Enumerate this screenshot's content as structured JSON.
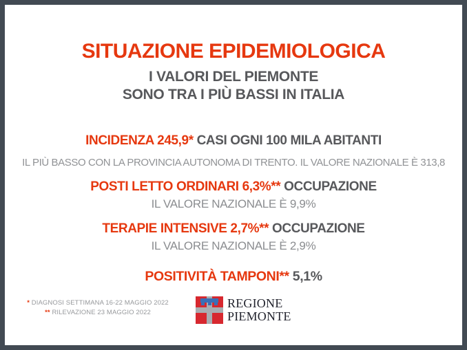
{
  "colors": {
    "accent_red": "#E6380F",
    "text_dark_gray": "#57585B",
    "text_light_gray": "#909295",
    "frame_slate": "#424A53",
    "logo_red": "#D7282F",
    "logo_cross_silver": "#A9ADB1",
    "logo_label_blue": "#3A6FB7"
  },
  "title": "SITUAZIONE EPIDEMIOLOGICA",
  "subtitle": {
    "line1": "I VALORI DEL PIEMONTE",
    "line2": "SONO TRA I PIÙ BASSI IN ITALIA"
  },
  "stats": [
    {
      "highlight": "INCIDENZA 245,9*",
      "rest": "CASI OGNI 100 MILA ABITANTI",
      "note": "IL PIÙ BASSO CON LA PROVINCIA AUTONOMA DI TRENTO. IL VALORE NAZIONALE È 313,8"
    },
    {
      "highlight": "POSTI LETTO ORDINARI 6,3%**",
      "rest": "OCCUPAZIONE",
      "note": "IL VALORE NAZIONALE È 9,9%"
    },
    {
      "highlight": "TERAPIE INTENSIVE 2,7%**",
      "rest": "OCCUPAZIONE",
      "note": "IL VALORE NAZIONALE È 2,9%"
    },
    {
      "highlight": "POSITIVITÀ TAMPONI**",
      "rest": "5,1%",
      "note": ""
    }
  ],
  "footnotes": [
    {
      "marker": "*",
      "text": "DIAGNOSI SETTIMANA 16-22 MAGGIO 2022"
    },
    {
      "marker": "**",
      "text": "RILEVAZIONE 23 MAGGIO 2022"
    }
  ],
  "logo": {
    "line1": "REGIONE",
    "line2": "PIEMONTE"
  }
}
